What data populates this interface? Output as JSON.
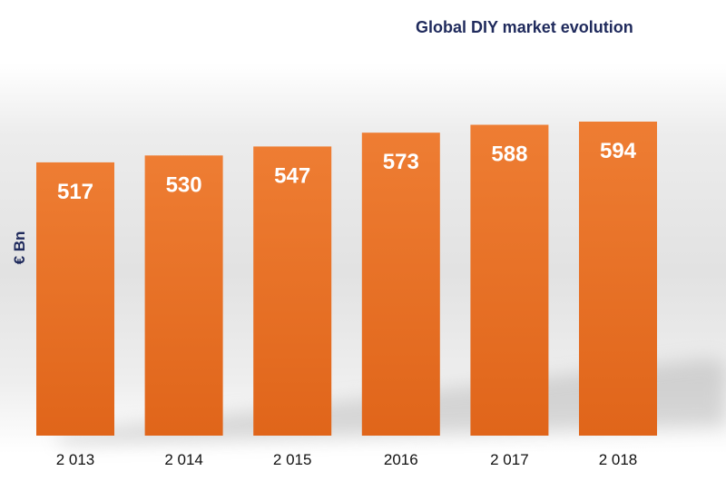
{
  "colors": {
    "bar_top": "#ee7d33",
    "bar_bottom": "#e0651a",
    "title": "#1f2a5c",
    "shadow": "#9a9a9a"
  },
  "chart_data": {
    "type": "bar",
    "title": "Global DIY market evolution",
    "xlabel": "",
    "ylabel": "€ Bn",
    "categories": [
      "2 013",
      "2 014",
      "2 015",
      "2016",
      "2 017",
      "2 018"
    ],
    "values": [
      517,
      530,
      547,
      573,
      588,
      594
    ],
    "data_labels": [
      "517",
      "530",
      "547",
      "573",
      "588",
      "594"
    ],
    "ylim": [
      0,
      594
    ],
    "grid": false,
    "legend": "none"
  }
}
